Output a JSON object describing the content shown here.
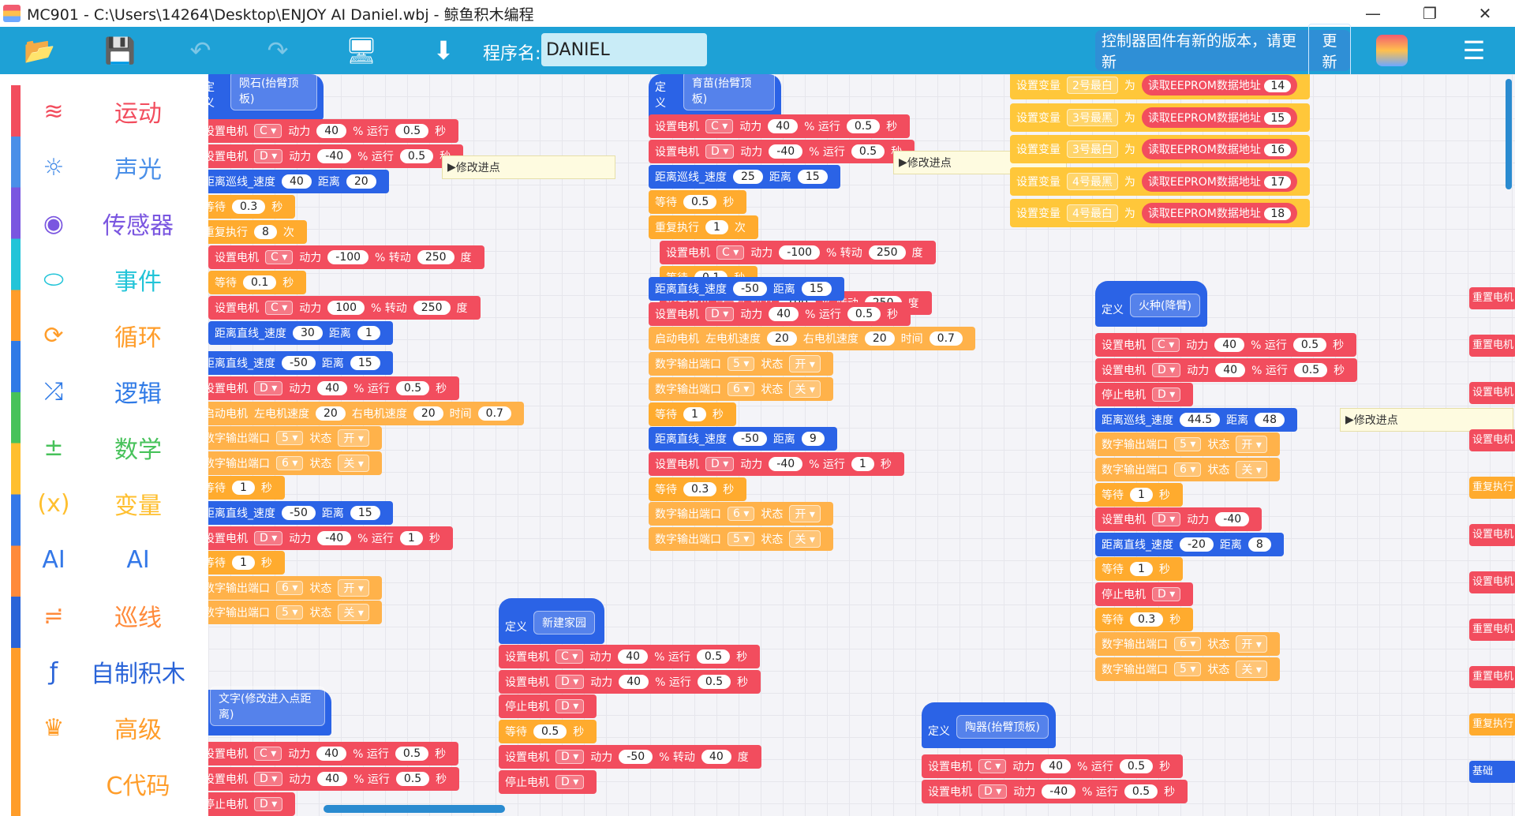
{
  "titlebar": {
    "title": "MC901  -  C:\\Users\\14264\\Desktop\\ENJOY AI Daniel.wbj  -  鲸鱼积木编程",
    "minimize": "—",
    "maximize": "❐",
    "close": "✕"
  },
  "toolbar": {
    "program_label": "程序名:",
    "program_name": "DANIEL",
    "firmware_msg": "控制器固件有新的版本，请更新",
    "update_label": "更新"
  },
  "categories": [
    {
      "label": "运动",
      "icon": "motion-icon",
      "color": "#f24d5e"
    },
    {
      "label": "声光",
      "icon": "sound-light-icon",
      "color": "#4a8fe8"
    },
    {
      "label": "传感器",
      "icon": "sensor-icon",
      "color": "#7a56e0"
    },
    {
      "label": "事件",
      "icon": "event-icon",
      "color": "#22c4d8"
    },
    {
      "label": "循环",
      "icon": "loop-icon",
      "color": "#ff9d2a"
    },
    {
      "label": "逻辑",
      "icon": "logic-icon",
      "color": "#2f7ae6"
    },
    {
      "label": "数学",
      "icon": "math-icon",
      "color": "#47c25a"
    },
    {
      "label": "变量",
      "icon": "variable-icon",
      "color": "#ffbf2e"
    },
    {
      "label": "AI",
      "icon": "ai-icon",
      "color": "#3478e8"
    },
    {
      "label": "巡线",
      "icon": "line-follow-icon",
      "color": "#ff8a3a"
    },
    {
      "label": "自制积木",
      "icon": "function-icon",
      "color": "#2a64d8"
    },
    {
      "label": "高级",
      "icon": "advanced-icon",
      "color": "#ff9d2a"
    },
    {
      "label": "C代码",
      "icon": "c-code-icon",
      "color": "#ff9d2a"
    }
  ],
  "blocks": {
    "define": "定义",
    "motor": "设置电机",
    "power": "动力",
    "run": "% 运行",
    "sec": "秒",
    "turn": "% 转动",
    "deg": "度",
    "dist": "距离",
    "wait": "等待",
    "repeat": "重复执行",
    "times": "次",
    "stop": "停止电机",
    "port": "数字输出端口",
    "state": "状态",
    "on": "开",
    "off": "关",
    "line_speed": "距离巡线_速度",
    "straight_speed": "距离直线_速度",
    "start_motor": "启动电机",
    "left_speed": "左电机速度",
    "right_speed": "右电机速度",
    "time": "时间",
    "set_var": "设置变量",
    "to": "为",
    "eeprom": "读取EEPROM数据地址",
    "note": "修改进点"
  },
  "hats": [
    {
      "name": "陨石(抬臂顶板)"
    },
    {
      "name": "育苗(抬臂顶板)"
    },
    {
      "name": "新建家园"
    },
    {
      "name": "火种(降臂)"
    },
    {
      "name": "陶器(抬臂顶板)"
    },
    {
      "name": "文字(修改进入点距离)"
    }
  ],
  "vars": [
    {
      "var": "2号最白",
      "addr": "14"
    },
    {
      "var": "3号最黑",
      "addr": "15"
    },
    {
      "var": "3号最白",
      "addr": "16"
    },
    {
      "var": "4号最黑",
      "addr": "17"
    },
    {
      "var": "4号最白",
      "addr": "18"
    }
  ],
  "right_labels": [
    "重置电机",
    "重置电机",
    "设置电机",
    "设置电机",
    "重复执行",
    "设置电机",
    "设置电机",
    "重置电机",
    "重置电机",
    "重复执行",
    "基础"
  ]
}
